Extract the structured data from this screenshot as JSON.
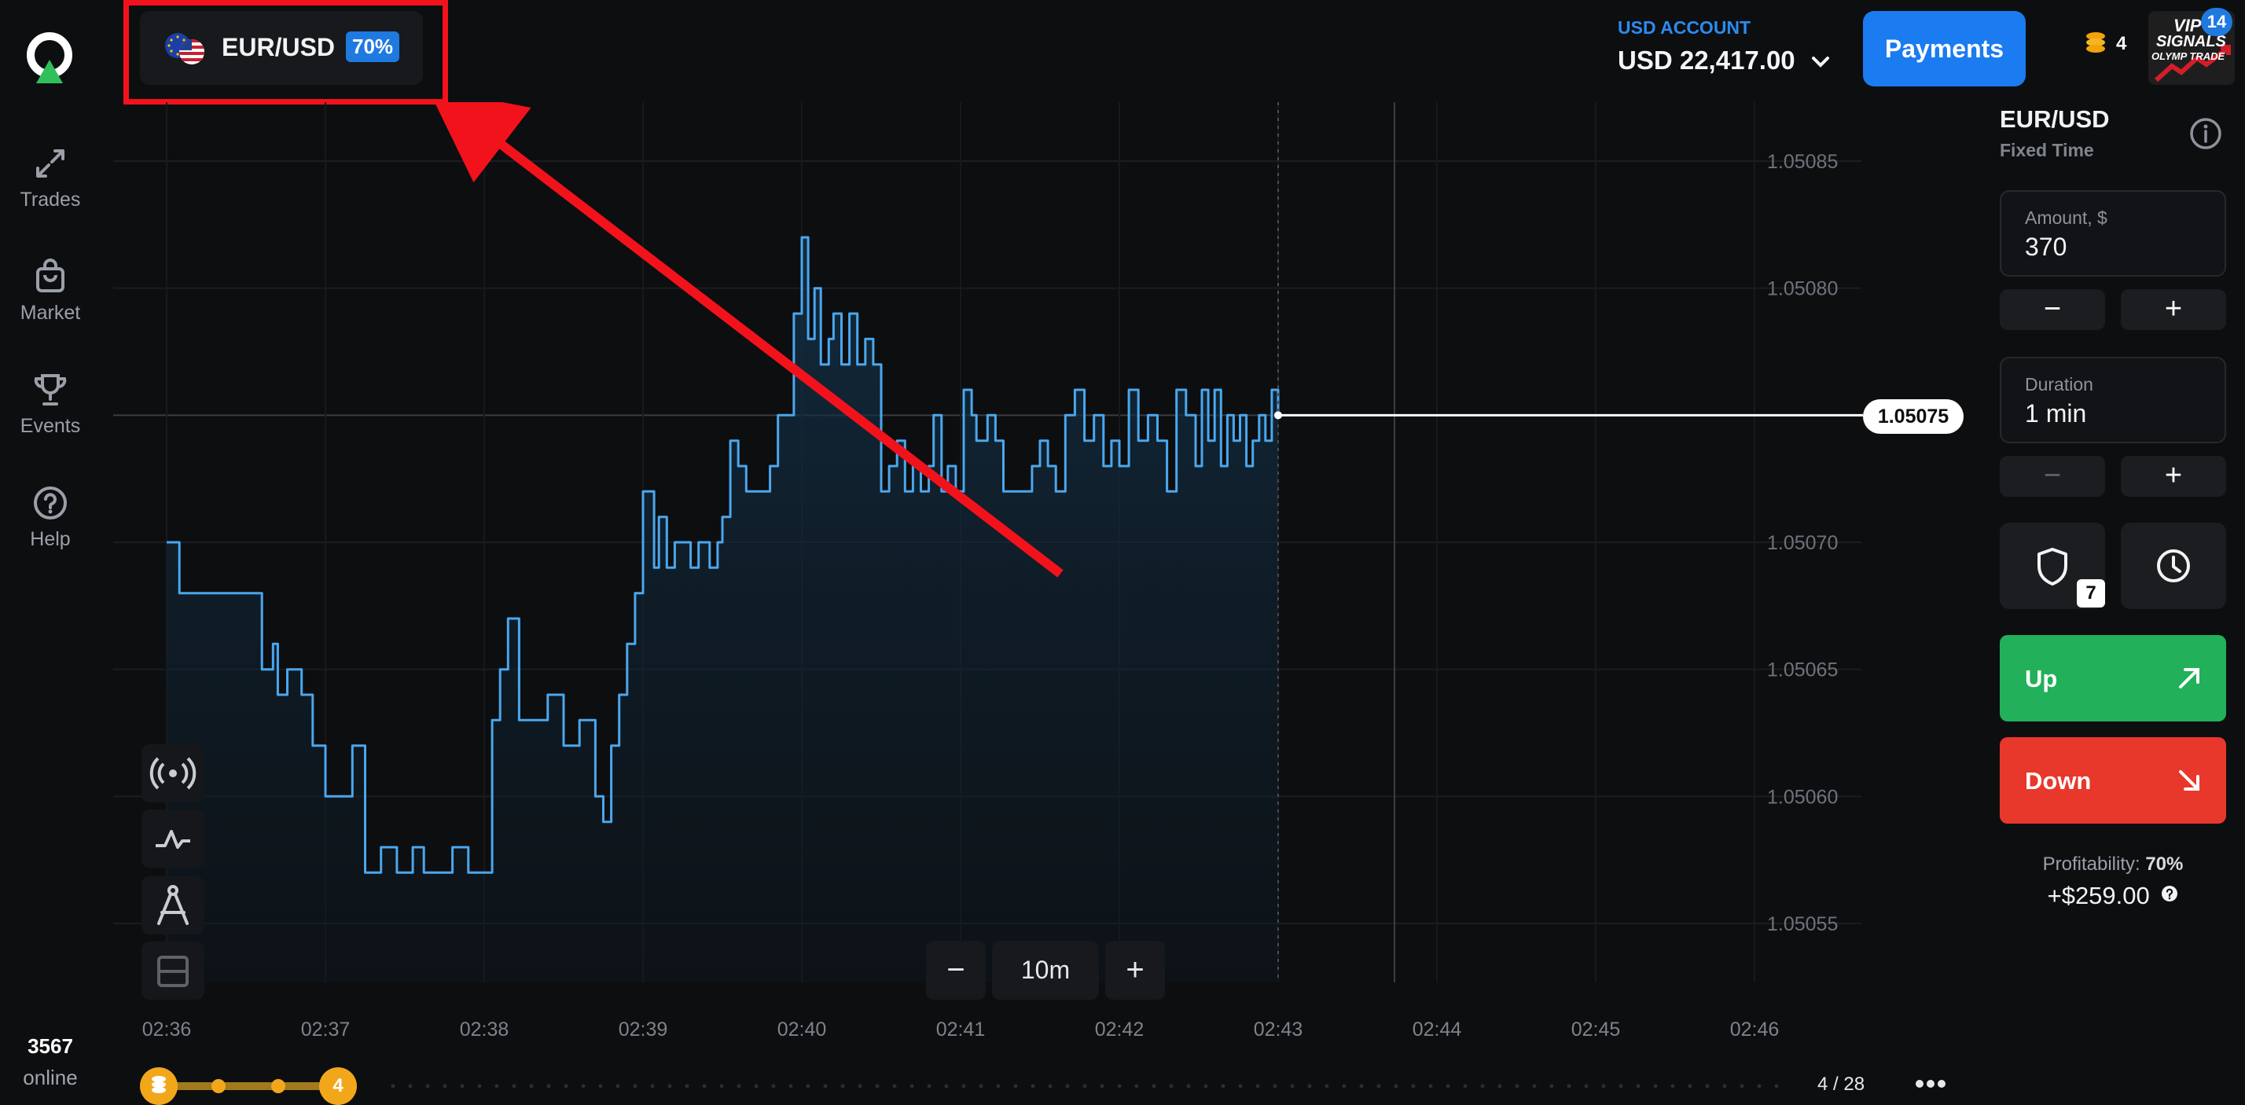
{
  "nav": {
    "items": [
      {
        "label": "Trades",
        "icon": "trades-arrows-icon"
      },
      {
        "label": "Market",
        "icon": "shopping-bag-icon"
      },
      {
        "label": "Events",
        "icon": "trophy-icon"
      },
      {
        "label": "Help",
        "icon": "help-circle-icon"
      }
    ],
    "online_count": "3567",
    "online_label": "online"
  },
  "asset_tab": {
    "name": "EUR/USD",
    "profit_pct": "70%",
    "flag_icon": "eu-us-flag-icon"
  },
  "account": {
    "label": "USD ACCOUNT",
    "balance": "USD 22,417.00"
  },
  "payments_label": "Payments",
  "coins": {
    "count": "4",
    "icon": "coin-stack-icon"
  },
  "vip": {
    "line1": "VIP",
    "line2": "SIGNALS",
    "line3": "OLYMP TRADE",
    "badge": "14"
  },
  "chart": {
    "current_price_label": "1.05075",
    "zoom_label": "10m",
    "page_counter": "4 / 28",
    "progress_level": "4"
  },
  "chart_data": {
    "type": "line",
    "y_ticks": [
      "1.05085",
      "1.05080",
      "1.05075",
      "1.05070",
      "1.05065",
      "1.05060",
      "1.05055"
    ],
    "x_ticks": [
      "02:36",
      "02:37",
      "02:38",
      "02:39",
      "02:40",
      "02:41",
      "02:42",
      "02:43",
      "02:44",
      "02:45",
      "02:46"
    ],
    "ylim": [
      1.05055,
      1.05085
    ],
    "current_price": 1.05075,
    "series": [
      {
        "x": [
          0.0,
          0.08,
          0.15,
          0.22,
          0.3,
          0.4,
          0.45,
          0.55,
          0.6,
          0.67,
          0.7,
          0.76,
          0.85,
          0.92,
          1.0,
          1.05,
          1.1,
          1.13,
          1.17,
          1.25,
          1.35,
          1.45,
          1.55,
          1.62,
          1.7,
          1.8,
          1.9,
          2.0,
          2.05,
          2.1,
          2.15,
          2.22,
          2.3,
          2.4,
          2.5,
          2.6,
          2.7,
          2.75,
          2.8,
          2.85,
          2.9,
          2.95,
          3.0,
          3.07,
          3.1,
          3.15,
          3.2,
          3.27,
          3.3,
          3.35,
          3.4,
          3.42,
          3.47,
          3.5,
          3.55,
          3.6,
          3.65,
          3.72,
          3.8,
          3.85,
          3.95,
          4.0,
          4.04,
          4.08,
          4.12,
          4.17,
          4.2,
          4.25,
          4.3,
          4.35,
          4.4,
          4.45,
          4.5,
          4.55,
          4.6,
          4.65,
          4.7,
          4.75,
          4.8,
          4.83,
          4.88,
          4.92,
          4.97,
          5.02,
          5.07,
          5.1,
          5.17,
          5.22,
          5.27,
          5.35,
          5.4,
          5.45,
          5.5,
          5.55,
          5.6,
          5.66,
          5.72,
          5.78,
          5.84,
          5.9,
          5.95,
          6.0,
          6.06,
          6.12,
          6.18,
          6.24,
          6.3,
          6.36,
          6.42,
          6.48,
          6.52,
          6.56,
          6.6,
          6.64,
          6.68,
          6.72,
          6.76,
          6.8,
          6.84,
          6.88,
          6.92,
          6.96,
          7.0
        ],
        "y": [
          1.0507,
          1.05068,
          1.05068,
          1.05068,
          1.05068,
          1.05068,
          1.05068,
          1.05068,
          1.05065,
          1.05066,
          1.05064,
          1.05065,
          1.05064,
          1.05062,
          1.0506,
          1.0506,
          1.0506,
          1.0506,
          1.05062,
          1.05057,
          1.05058,
          1.05057,
          1.05058,
          1.05057,
          1.05057,
          1.05058,
          1.05057,
          1.05057,
          1.05063,
          1.05065,
          1.05067,
          1.05063,
          1.05063,
          1.05064,
          1.05062,
          1.05063,
          1.0506,
          1.05059,
          1.05062,
          1.05064,
          1.05066,
          1.05068,
          1.05072,
          1.05069,
          1.05071,
          1.05069,
          1.0507,
          1.0507,
          1.05069,
          1.0507,
          1.0507,
          1.05069,
          1.0507,
          1.05071,
          1.05074,
          1.05073,
          1.05072,
          1.05072,
          1.05073,
          1.05075,
          1.05079,
          1.05082,
          1.05078,
          1.0508,
          1.05077,
          1.05078,
          1.05079,
          1.05077,
          1.05079,
          1.05077,
          1.05078,
          1.05077,
          1.05072,
          1.05073,
          1.05074,
          1.05072,
          1.05073,
          1.05072,
          1.05073,
          1.05075,
          1.05072,
          1.05073,
          1.05072,
          1.05076,
          1.05075,
          1.05074,
          1.05075,
          1.05074,
          1.05072,
          1.05072,
          1.05072,
          1.05073,
          1.05074,
          1.05073,
          1.05072,
          1.05075,
          1.05076,
          1.05074,
          1.05075,
          1.05073,
          1.05074,
          1.05073,
          1.05076,
          1.05074,
          1.05075,
          1.05074,
          1.05072,
          1.05076,
          1.05075,
          1.05073,
          1.05076,
          1.05074,
          1.05076,
          1.05073,
          1.05075,
          1.05074,
          1.05075,
          1.05073,
          1.05074,
          1.05075,
          1.05074,
          1.05076,
          1.05075
        ]
      }
    ]
  },
  "panel": {
    "title": "EUR/USD",
    "subtitle": "Fixed Time",
    "amount_label": "Amount, $",
    "amount_value": "370",
    "duration_label": "Duration",
    "duration_value": "1 min",
    "minus": "−",
    "plus": "+",
    "shield_badge": "7",
    "up_label": "Up",
    "down_label": "Down",
    "profitability_label": "Profitability:",
    "profitability_value": "70%",
    "profit_amount": "+$259.00",
    "colors": {
      "up": "#22b05a",
      "down": "#e8382b",
      "accent": "#1b7bf0"
    }
  }
}
